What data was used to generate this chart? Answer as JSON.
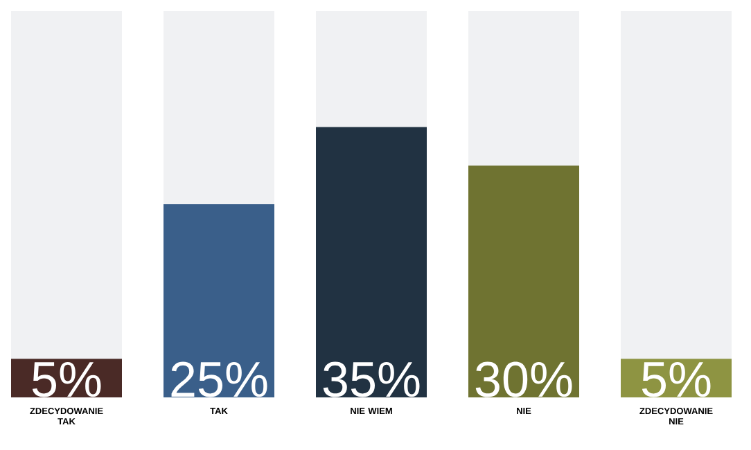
{
  "chart_data": {
    "type": "bar",
    "categories": [
      "ZDECYDOWANIE TAK",
      "TAK",
      "NIE WIEM",
      "NIE",
      "ZDECYDOWANIE NIE"
    ],
    "values": [
      5,
      25,
      35,
      30,
      5
    ],
    "colors": [
      "#4a2a26",
      "#3a5f8a",
      "#213242",
      "#6f7331",
      "#8e9442"
    ],
    "value_labels": [
      "5%",
      "25%",
      "35%",
      "30%",
      "5%"
    ],
    "ylim": [
      0,
      50
    ]
  }
}
